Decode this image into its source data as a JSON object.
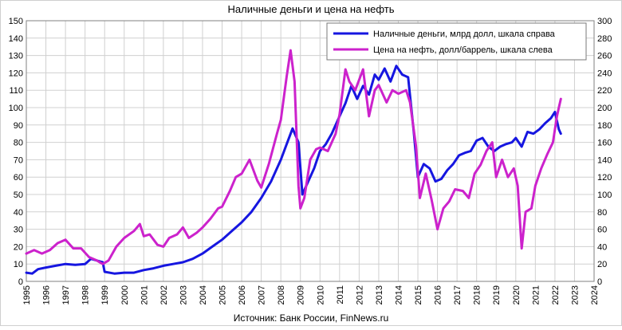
{
  "chart_data": {
    "type": "line",
    "title": "Наличные деньги и цена на нефть",
    "source": "Источник: Банк России, FinNews.ru",
    "x_range": [
      1995,
      2024
    ],
    "x_ticks": [
      "1995",
      "1996",
      "1997",
      "1998",
      "1999",
      "2000",
      "2001",
      "2002",
      "2003",
      "2004",
      "2005",
      "2006",
      "2007",
      "2008",
      "2009",
      "2010",
      "2011",
      "2012",
      "2013",
      "2014",
      "2015",
      "2016",
      "2017",
      "2018",
      "2019",
      "2020",
      "2021",
      "2022",
      "2023",
      "2024"
    ],
    "y_left": {
      "range": [
        0,
        150
      ],
      "ticks": [
        "0",
        "10",
        "20",
        "30",
        "40",
        "50",
        "60",
        "70",
        "80",
        "90",
        "100",
        "110",
        "120",
        "130",
        "140",
        "150"
      ]
    },
    "y_right": {
      "range": [
        0,
        300
      ],
      "ticks": [
        "0",
        "20",
        "40",
        "60",
        "80",
        "100",
        "120",
        "140",
        "160",
        "180",
        "200",
        "220",
        "240",
        "260",
        "280",
        "300"
      ]
    },
    "grid": true,
    "legend_position": "top-right",
    "colors": {
      "cash": "#1616e0",
      "oil": "#cc22cc"
    },
    "series": [
      {
        "name": "Наличные деньги, млрд долл, шкала справа",
        "key": "cash",
        "axis": "right",
        "points": [
          [
            1995.0,
            10
          ],
          [
            1995.3,
            9
          ],
          [
            1995.6,
            14
          ],
          [
            1996.0,
            16
          ],
          [
            1996.5,
            18
          ],
          [
            1997.0,
            20
          ],
          [
            1997.5,
            19
          ],
          [
            1998.0,
            20
          ],
          [
            1998.3,
            26
          ],
          [
            1998.6,
            24
          ],
          [
            1998.9,
            22
          ],
          [
            1999.0,
            11
          ],
          [
            1999.5,
            9
          ],
          [
            2000.0,
            10
          ],
          [
            2000.5,
            10
          ],
          [
            2001.0,
            13
          ],
          [
            2001.5,
            15
          ],
          [
            2002.0,
            18
          ],
          [
            2002.5,
            20
          ],
          [
            2003.0,
            22
          ],
          [
            2003.5,
            26
          ],
          [
            2004.0,
            32
          ],
          [
            2004.5,
            40
          ],
          [
            2005.0,
            48
          ],
          [
            2005.5,
            58
          ],
          [
            2006.0,
            68
          ],
          [
            2006.5,
            80
          ],
          [
            2007.0,
            96
          ],
          [
            2007.5,
            115
          ],
          [
            2008.0,
            140
          ],
          [
            2008.3,
            158
          ],
          [
            2008.6,
            176
          ],
          [
            2008.9,
            160
          ],
          [
            2009.1,
            100
          ],
          [
            2009.4,
            115
          ],
          [
            2009.7,
            130
          ],
          [
            2010.0,
            150
          ],
          [
            2010.3,
            158
          ],
          [
            2010.6,
            170
          ],
          [
            2011.0,
            190
          ],
          [
            2011.3,
            205
          ],
          [
            2011.6,
            225
          ],
          [
            2011.9,
            210
          ],
          [
            2012.2,
            225
          ],
          [
            2012.5,
            215
          ],
          [
            2012.8,
            238
          ],
          [
            2013.0,
            232
          ],
          [
            2013.3,
            245
          ],
          [
            2013.6,
            230
          ],
          [
            2013.9,
            248
          ],
          [
            2014.2,
            238
          ],
          [
            2014.5,
            235
          ],
          [
            2014.8,
            170
          ],
          [
            2015.0,
            120
          ],
          [
            2015.3,
            135
          ],
          [
            2015.6,
            130
          ],
          [
            2015.9,
            115
          ],
          [
            2016.2,
            118
          ],
          [
            2016.5,
            128
          ],
          [
            2016.8,
            135
          ],
          [
            2017.1,
            145
          ],
          [
            2017.4,
            148
          ],
          [
            2017.7,
            150
          ],
          [
            2018.0,
            162
          ],
          [
            2018.3,
            165
          ],
          [
            2018.6,
            155
          ],
          [
            2018.9,
            150
          ],
          [
            2019.2,
            155
          ],
          [
            2019.5,
            158
          ],
          [
            2019.8,
            160
          ],
          [
            2020.0,
            165
          ],
          [
            2020.3,
            155
          ],
          [
            2020.6,
            172
          ],
          [
            2020.9,
            170
          ],
          [
            2021.2,
            175
          ],
          [
            2021.5,
            182
          ],
          [
            2021.8,
            188
          ],
          [
            2022.0,
            195
          ],
          [
            2022.2,
            175
          ],
          [
            2022.3,
            170
          ]
        ]
      },
      {
        "name": "Цена на нефть, долл/баррель, шкала слева",
        "key": "oil",
        "axis": "left",
        "points": [
          [
            1995.0,
            16
          ],
          [
            1995.4,
            18
          ],
          [
            1995.8,
            16
          ],
          [
            1996.2,
            18
          ],
          [
            1996.6,
            22
          ],
          [
            1997.0,
            24
          ],
          [
            1997.4,
            19
          ],
          [
            1997.8,
            19
          ],
          [
            1998.2,
            14
          ],
          [
            1998.6,
            12
          ],
          [
            1998.9,
            10
          ],
          [
            1999.2,
            12
          ],
          [
            1999.6,
            20
          ],
          [
            2000.0,
            25
          ],
          [
            2000.5,
            29
          ],
          [
            2000.8,
            33
          ],
          [
            2001.0,
            26
          ],
          [
            2001.3,
            27
          ],
          [
            2001.7,
            21
          ],
          [
            2002.0,
            20
          ],
          [
            2002.3,
            25
          ],
          [
            2002.7,
            27
          ],
          [
            2003.0,
            31
          ],
          [
            2003.3,
            25
          ],
          [
            2003.7,
            28
          ],
          [
            2004.0,
            31
          ],
          [
            2004.4,
            36
          ],
          [
            2004.8,
            42
          ],
          [
            2005.0,
            43
          ],
          [
            2005.4,
            52
          ],
          [
            2005.7,
            60
          ],
          [
            2006.0,
            62
          ],
          [
            2006.4,
            70
          ],
          [
            2006.8,
            58
          ],
          [
            2007.0,
            54
          ],
          [
            2007.4,
            68
          ],
          [
            2007.8,
            85
          ],
          [
            2008.0,
            93
          ],
          [
            2008.3,
            118
          ],
          [
            2008.5,
            133
          ],
          [
            2008.7,
            115
          ],
          [
            2008.9,
            55
          ],
          [
            2009.0,
            42
          ],
          [
            2009.2,
            48
          ],
          [
            2009.5,
            70
          ],
          [
            2009.8,
            76
          ],
          [
            2010.0,
            77
          ],
          [
            2010.4,
            75
          ],
          [
            2010.8,
            85
          ],
          [
            2011.0,
            96
          ],
          [
            2011.3,
            122
          ],
          [
            2011.5,
            115
          ],
          [
            2011.8,
            110
          ],
          [
            2012.2,
            122
          ],
          [
            2012.5,
            95
          ],
          [
            2012.8,
            110
          ],
          [
            2013.0,
            113
          ],
          [
            2013.4,
            103
          ],
          [
            2013.7,
            110
          ],
          [
            2014.0,
            108
          ],
          [
            2014.4,
            110
          ],
          [
            2014.6,
            103
          ],
          [
            2014.9,
            78
          ],
          [
            2015.1,
            48
          ],
          [
            2015.4,
            62
          ],
          [
            2015.7,
            47
          ],
          [
            2016.0,
            30
          ],
          [
            2016.3,
            42
          ],
          [
            2016.6,
            46
          ],
          [
            2016.9,
            53
          ],
          [
            2017.3,
            52
          ],
          [
            2017.6,
            48
          ],
          [
            2017.9,
            62
          ],
          [
            2018.2,
            67
          ],
          [
            2018.5,
            75
          ],
          [
            2018.8,
            80
          ],
          [
            2019.0,
            60
          ],
          [
            2019.3,
            70
          ],
          [
            2019.6,
            60
          ],
          [
            2019.9,
            65
          ],
          [
            2020.1,
            55
          ],
          [
            2020.3,
            19
          ],
          [
            2020.5,
            40
          ],
          [
            2020.8,
            42
          ],
          [
            2021.0,
            55
          ],
          [
            2021.3,
            65
          ],
          [
            2021.6,
            73
          ],
          [
            2021.9,
            80
          ],
          [
            2022.1,
            95
          ],
          [
            2022.2,
            100
          ],
          [
            2022.3,
            105
          ]
        ]
      }
    ]
  }
}
